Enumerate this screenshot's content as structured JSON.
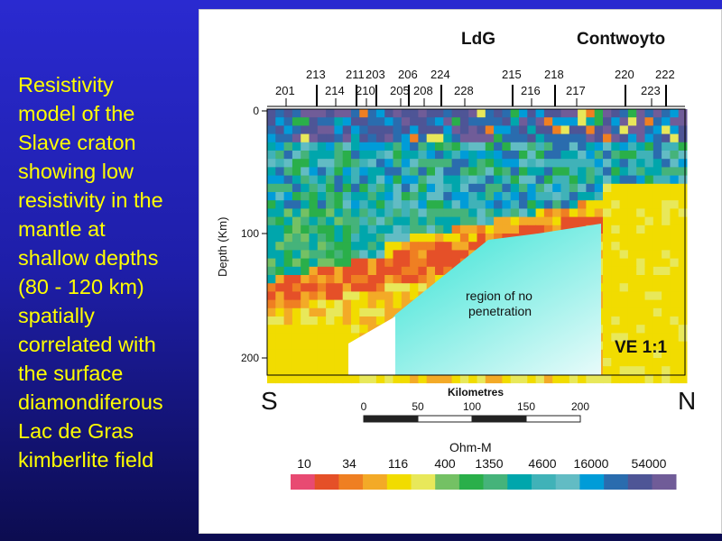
{
  "caption_lines": [
    "Resistivity",
    "model of the",
    "Slave craton",
    "showing low",
    "resistivity in the",
    "mantle at",
    "shallow depths",
    "(80 - 120 km)",
    "spatially",
    "correlated with",
    "the surface",
    "diamondiferous",
    "Lac de Gras",
    "kimberlite field"
  ],
  "figure": {
    "labels": {
      "ldg": "LdG",
      "contwoyto": "Contwoyto",
      "region": "region of no",
      "region2": "penetration",
      "ve": "VE 1:1",
      "south": "S",
      "north": "N",
      "ylabel": "Depth (Km)",
      "xlabel": "Kilometres",
      "units": "Ohm-M"
    },
    "stations_top": [
      "213",
      "211",
      "203",
      "206",
      "224",
      "215",
      "218",
      "220",
      "222"
    ],
    "stations_bottom": [
      "201",
      "214",
      "210",
      "205",
      "208",
      "228",
      "216",
      "217",
      "223"
    ],
    "depth_ticks": [
      "0",
      "100",
      "200"
    ],
    "km_ticks": [
      "0",
      "50",
      "100",
      "150",
      "200"
    ],
    "scale_values": [
      "10",
      "34",
      "116",
      "400",
      "1350",
      "4600",
      "16000",
      "54000"
    ],
    "scale_colors": [
      "#e84a72",
      "#e55028",
      "#ef7f22",
      "#f3aa27",
      "#f1dc00",
      "#e8e85a",
      "#74c164",
      "#2aaf4a",
      "#45b37a",
      "#00a6ac",
      "#40b2b8",
      "#62bcc4",
      "#009cd8",
      "#2a6cae",
      "#4e5596",
      "#705c98"
    ]
  }
}
